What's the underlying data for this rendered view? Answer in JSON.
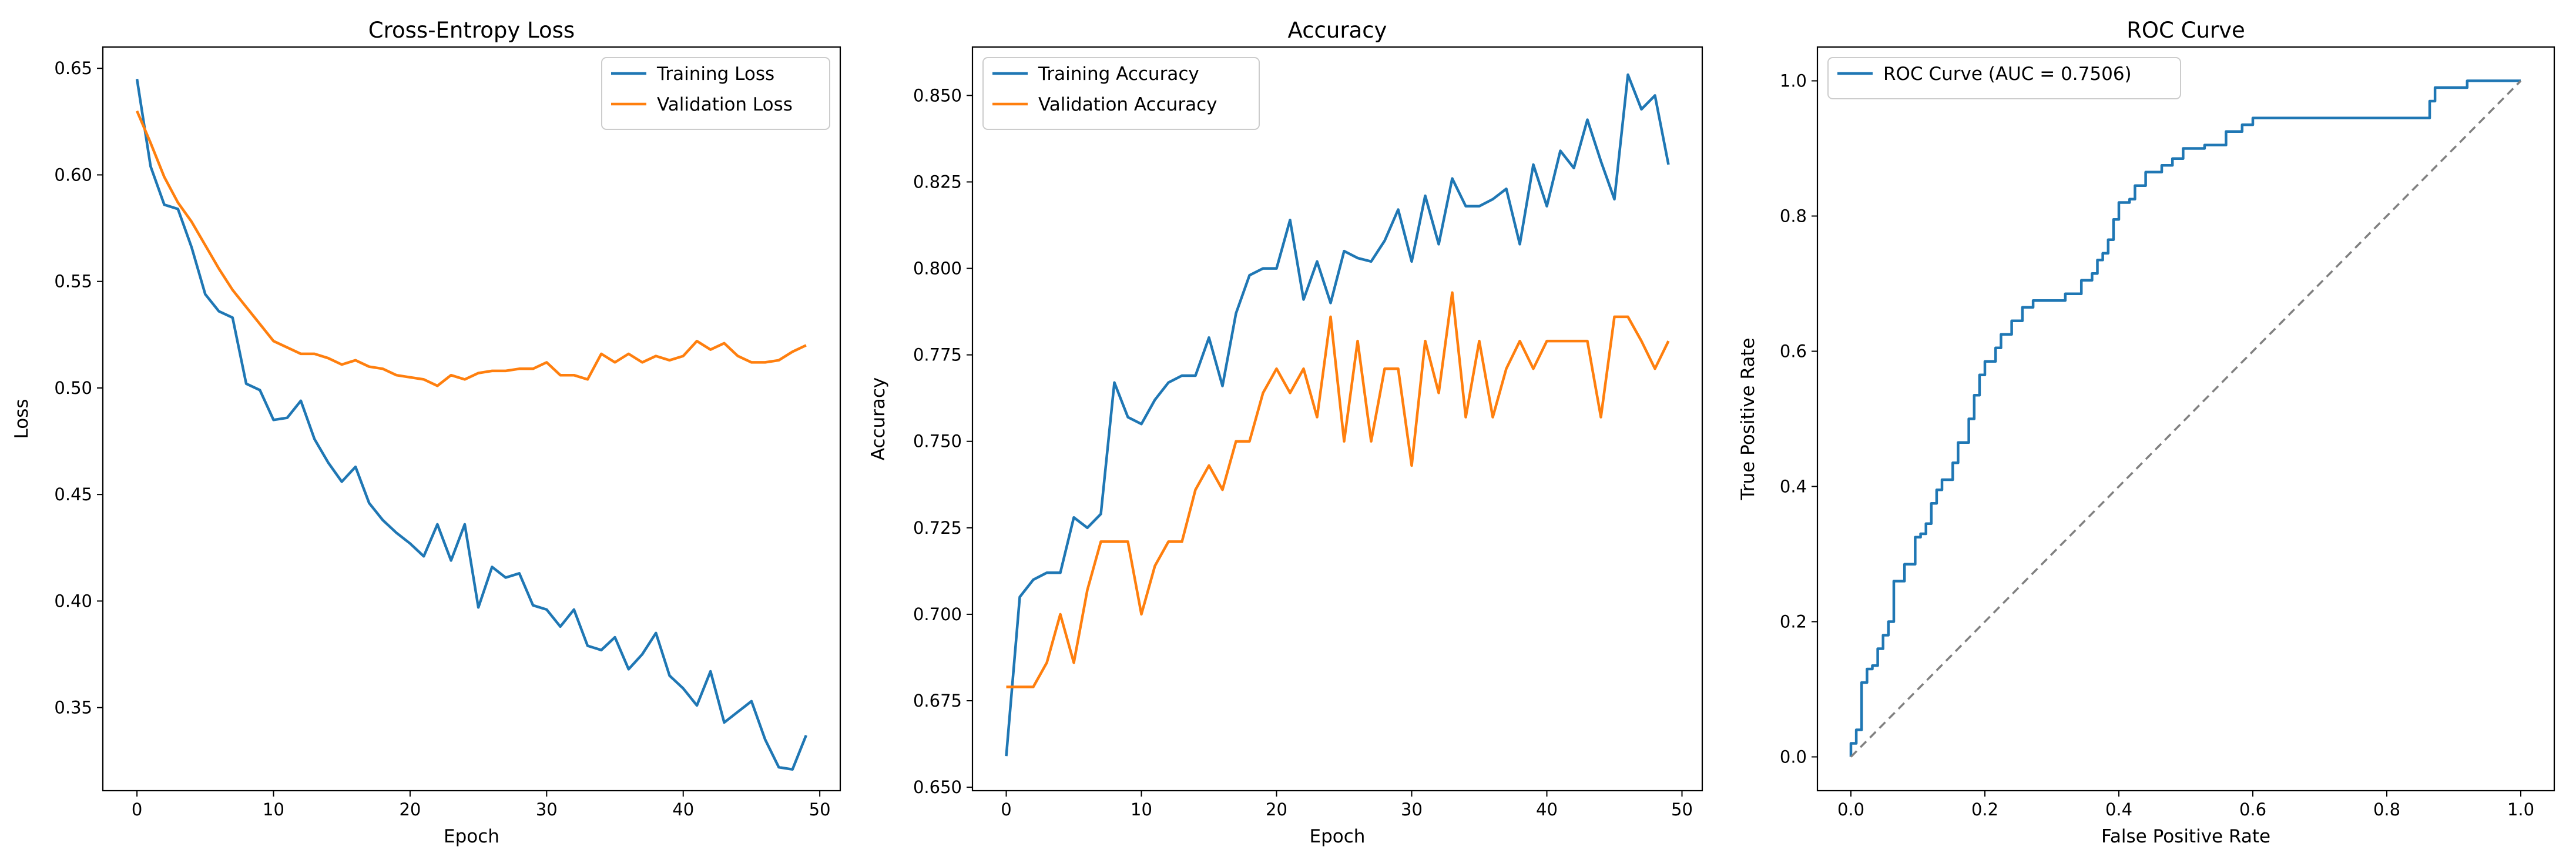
{
  "chart_data": [
    {
      "type": "line",
      "title": "Cross-Entropy Loss",
      "xlabel": "Epoch",
      "ylabel": "Loss",
      "xlim": [
        -2.5,
        51.5
      ],
      "ylim": [
        0.311,
        0.66
      ],
      "xticks": [
        0,
        10,
        20,
        30,
        40,
        50
      ],
      "yticks": [
        0.35,
        0.4,
        0.45,
        0.5,
        0.55,
        0.6,
        0.65
      ],
      "tick_decimals": 2,
      "grid": false,
      "legend": "upper right",
      "series": [
        {
          "name": "Training Loss",
          "color": "#1f77b4",
          "x": [
            0,
            1,
            2,
            3,
            4,
            5,
            6,
            7,
            8,
            9,
            10,
            11,
            12,
            13,
            14,
            15,
            16,
            17,
            18,
            19,
            20,
            21,
            22,
            23,
            24,
            25,
            26,
            27,
            28,
            29,
            30,
            31,
            32,
            33,
            34,
            35,
            36,
            37,
            38,
            39,
            40,
            41,
            42,
            43,
            44,
            45,
            46,
            47,
            48,
            49
          ],
          "y": [
            0.645,
            0.604,
            0.586,
            0.584,
            0.566,
            0.544,
            0.536,
            0.533,
            0.502,
            0.499,
            0.485,
            0.486,
            0.494,
            0.476,
            0.465,
            0.456,
            0.463,
            0.446,
            0.438,
            0.432,
            0.427,
            0.421,
            0.436,
            0.419,
            0.436,
            0.397,
            0.416,
            0.411,
            0.413,
            0.398,
            0.396,
            0.388,
            0.396,
            0.379,
            0.377,
            0.383,
            0.368,
            0.375,
            0.385,
            0.365,
            0.359,
            0.351,
            0.367,
            0.343,
            0.348,
            0.353,
            0.335,
            0.322,
            0.321,
            0.337
          ]
        },
        {
          "name": "Validation Loss",
          "color": "#ff7f0e",
          "x": [
            0,
            1,
            2,
            3,
            4,
            5,
            6,
            7,
            8,
            9,
            10,
            11,
            12,
            13,
            14,
            15,
            16,
            17,
            18,
            19,
            20,
            21,
            22,
            23,
            24,
            25,
            26,
            27,
            28,
            29,
            30,
            31,
            32,
            33,
            34,
            35,
            36,
            37,
            38,
            39,
            40,
            41,
            42,
            43,
            44,
            45,
            46,
            47,
            48,
            49
          ],
          "y": [
            0.63,
            0.615,
            0.599,
            0.587,
            0.578,
            0.567,
            0.556,
            0.546,
            0.538,
            0.53,
            0.522,
            0.519,
            0.516,
            0.516,
            0.514,
            0.511,
            0.513,
            0.51,
            0.509,
            0.506,
            0.505,
            0.504,
            0.501,
            0.506,
            0.504,
            0.507,
            0.508,
            0.508,
            0.509,
            0.509,
            0.512,
            0.506,
            0.506,
            0.504,
            0.516,
            0.512,
            0.516,
            0.512,
            0.515,
            0.513,
            0.515,
            0.522,
            0.518,
            0.521,
            0.515,
            0.512,
            0.512,
            0.513,
            0.517,
            0.52
          ]
        }
      ]
    },
    {
      "type": "line",
      "title": "Accuracy",
      "xlabel": "Epoch",
      "ylabel": "Accuracy",
      "xlim": [
        -2.5,
        51.5
      ],
      "ylim": [
        0.649,
        0.864
      ],
      "xticks": [
        0,
        10,
        20,
        30,
        40,
        50
      ],
      "yticks": [
        0.65,
        0.675,
        0.7,
        0.725,
        0.75,
        0.775,
        0.8,
        0.825,
        0.85
      ],
      "tick_decimals": 3,
      "grid": false,
      "legend": "upper left",
      "series": [
        {
          "name": "Training Accuracy",
          "color": "#1f77b4",
          "x": [
            0,
            1,
            2,
            3,
            4,
            5,
            6,
            7,
            8,
            9,
            10,
            11,
            12,
            13,
            14,
            15,
            16,
            17,
            18,
            19,
            20,
            21,
            22,
            23,
            24,
            25,
            26,
            27,
            28,
            29,
            30,
            31,
            32,
            33,
            34,
            35,
            36,
            37,
            38,
            39,
            40,
            41,
            42,
            43,
            44,
            45,
            46,
            47,
            48,
            49
          ],
          "y": [
            0.659,
            0.705,
            0.71,
            0.712,
            0.712,
            0.728,
            0.725,
            0.729,
            0.767,
            0.757,
            0.755,
            0.762,
            0.767,
            0.769,
            0.769,
            0.78,
            0.766,
            0.787,
            0.798,
            0.8,
            0.8,
            0.814,
            0.791,
            0.802,
            0.79,
            0.805,
            0.803,
            0.802,
            0.808,
            0.817,
            0.802,
            0.821,
            0.807,
            0.826,
            0.818,
            0.818,
            0.82,
            0.823,
            0.807,
            0.83,
            0.818,
            0.834,
            0.829,
            0.843,
            0.831,
            0.82,
            0.856,
            0.846,
            0.85,
            0.83
          ]
        },
        {
          "name": "Validation Accuracy",
          "color": "#ff7f0e",
          "x": [
            0,
            1,
            2,
            3,
            4,
            5,
            6,
            7,
            8,
            9,
            10,
            11,
            12,
            13,
            14,
            15,
            16,
            17,
            18,
            19,
            20,
            21,
            22,
            23,
            24,
            25,
            26,
            27,
            28,
            29,
            30,
            31,
            32,
            33,
            34,
            35,
            36,
            37,
            38,
            39,
            40,
            41,
            42,
            43,
            44,
            45,
            46,
            47,
            48,
            49
          ],
          "y": [
            0.679,
            0.679,
            0.679,
            0.686,
            0.7,
            0.686,
            0.707,
            0.721,
            0.721,
            0.721,
            0.7,
            0.714,
            0.721,
            0.721,
            0.736,
            0.743,
            0.736,
            0.75,
            0.75,
            0.764,
            0.771,
            0.764,
            0.771,
            0.757,
            0.786,
            0.75,
            0.779,
            0.75,
            0.771,
            0.771,
            0.743,
            0.779,
            0.764,
            0.793,
            0.757,
            0.779,
            0.757,
            0.771,
            0.779,
            0.771,
            0.779,
            0.779,
            0.779,
            0.779,
            0.757,
            0.786,
            0.786,
            0.779,
            0.771,
            0.779
          ]
        }
      ]
    },
    {
      "type": "line",
      "title": "ROC Curve",
      "xlabel": "False Positive Rate",
      "ylabel": "True Positive Rate",
      "xlim": [
        -0.05,
        1.05
      ],
      "ylim": [
        -0.05,
        1.05
      ],
      "xticks": [
        0.0,
        0.2,
        0.4,
        0.6,
        0.8,
        1.0
      ],
      "yticks": [
        0.0,
        0.2,
        0.4,
        0.6,
        0.8,
        1.0
      ],
      "tick_decimals": 1,
      "grid": false,
      "legend": "upper left",
      "series": [
        {
          "name": "ROC Curve (AUC = 0.7506)",
          "color": "#1f77b4",
          "step": true,
          "x": [
            0.0,
            0.0,
            0.008,
            0.008,
            0.016,
            0.016,
            0.024,
            0.024,
            0.032,
            0.032,
            0.04,
            0.04,
            0.048,
            0.048,
            0.056,
            0.056,
            0.064,
            0.064,
            0.08,
            0.08,
            0.096,
            0.096,
            0.104,
            0.104,
            0.112,
            0.112,
            0.12,
            0.12,
            0.128,
            0.128,
            0.136,
            0.136,
            0.152,
            0.152,
            0.16,
            0.16,
            0.176,
            0.176,
            0.184,
            0.184,
            0.192,
            0.192,
            0.2,
            0.2,
            0.216,
            0.216,
            0.224,
            0.224,
            0.24,
            0.24,
            0.256,
            0.256,
            0.272,
            0.272,
            0.32,
            0.32,
            0.344,
            0.344,
            0.36,
            0.36,
            0.368,
            0.368,
            0.376,
            0.376,
            0.384,
            0.384,
            0.392,
            0.392,
            0.4,
            0.4,
            0.408,
            0.408,
            0.416,
            0.416,
            0.424,
            0.424,
            0.44,
            0.44,
            0.464,
            0.464,
            0.48,
            0.48,
            0.496,
            0.496,
            0.504,
            0.504,
            0.528,
            0.528,
            0.56,
            0.56,
            0.584,
            0.584,
            0.6,
            0.6,
            0.616,
            0.616,
            0.864,
            0.864,
            0.872,
            0.872,
            0.88,
            0.88,
            0.92,
            0.92,
            1.0
          ],
          "y": [
            0.0,
            0.02,
            0.02,
            0.04,
            0.04,
            0.11,
            0.11,
            0.13,
            0.13,
            0.135,
            0.135,
            0.16,
            0.16,
            0.18,
            0.18,
            0.2,
            0.2,
            0.26,
            0.26,
            0.285,
            0.285,
            0.325,
            0.325,
            0.33,
            0.33,
            0.345,
            0.345,
            0.375,
            0.375,
            0.395,
            0.395,
            0.41,
            0.41,
            0.435,
            0.435,
            0.465,
            0.465,
            0.5,
            0.5,
            0.535,
            0.535,
            0.565,
            0.565,
            0.585,
            0.585,
            0.605,
            0.605,
            0.625,
            0.625,
            0.645,
            0.645,
            0.665,
            0.665,
            0.675,
            0.675,
            0.685,
            0.685,
            0.705,
            0.705,
            0.715,
            0.715,
            0.735,
            0.735,
            0.745,
            0.745,
            0.765,
            0.765,
            0.795,
            0.795,
            0.82,
            0.82,
            0.82,
            0.82,
            0.825,
            0.825,
            0.845,
            0.845,
            0.865,
            0.865,
            0.875,
            0.875,
            0.885,
            0.885,
            0.9,
            0.9,
            0.9,
            0.9,
            0.905,
            0.905,
            0.925,
            0.925,
            0.935,
            0.935,
            0.945,
            0.945,
            0.945,
            0.945,
            0.97,
            0.97,
            0.99,
            0.99,
            0.99,
            0.99,
            1.0,
            1.0
          ]
        },
        {
          "name": "",
          "color": "#808080",
          "dashed": true,
          "x": [
            0.0,
            1.0
          ],
          "y": [
            0.0,
            1.0
          ]
        }
      ]
    }
  ]
}
